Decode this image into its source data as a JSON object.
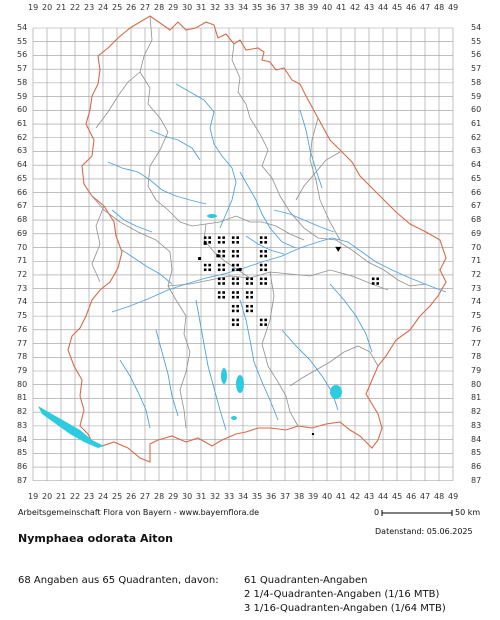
{
  "grid": {
    "columns": [
      19,
      20,
      21,
      22,
      23,
      24,
      25,
      26,
      27,
      28,
      29,
      30,
      31,
      32,
      33,
      34,
      35,
      36,
      37,
      38,
      39,
      40,
      41,
      42,
      43,
      44,
      45,
      46,
      47,
      48,
      49
    ],
    "rows": [
      54,
      55,
      56,
      57,
      58,
      59,
      60,
      61,
      62,
      63,
      64,
      65,
      66,
      67,
      68,
      69,
      70,
      71,
      72,
      73,
      74,
      75,
      76,
      77,
      78,
      79,
      80,
      81,
      82,
      83,
      84,
      85,
      86,
      87
    ]
  },
  "records": {
    "quadrant_cells": [
      [
        31,
        69
      ],
      [
        32,
        69
      ],
      [
        33,
        69
      ],
      [
        35,
        69
      ],
      [
        32,
        70
      ],
      [
        33,
        70
      ],
      [
        35,
        70
      ],
      [
        31,
        71
      ],
      [
        32,
        71
      ],
      [
        33,
        71
      ],
      [
        35,
        71
      ],
      [
        32,
        72
      ],
      [
        33,
        72
      ],
      [
        34,
        72
      ],
      [
        35,
        72
      ],
      [
        43,
        72
      ],
      [
        32,
        73
      ],
      [
        33,
        73
      ],
      [
        34,
        73
      ],
      [
        33,
        74
      ],
      [
        34,
        74
      ],
      [
        33,
        75
      ],
      [
        35,
        75
      ]
    ],
    "partial_points": [
      [
        31.3,
        69.7
      ],
      [
        32.2,
        70.6
      ],
      [
        30.9,
        70.8
      ],
      [
        33.8,
        71.6
      ]
    ],
    "triangle_symbols": [
      [
        40.8,
        70.1
      ]
    ],
    "small_points": [
      [
        39.0,
        83.6
      ]
    ]
  },
  "footer": {
    "credit": "Arbeitsgemeinschaft Flora von Bayern - www.bayernflora.de",
    "scale_zero": "0",
    "scale_end": "50 km",
    "date": "Datenstand: 05.06.2025",
    "species": "Nymphaea odorata Aiton",
    "summary_left": "68 Angaben aus 65 Quadranten, davon:",
    "summary_lines": [
      "61 Quadranten-Angaben",
      "2 1/4-Quadranten-Angaben (1/16 MTB)",
      "3 1/16-Quadranten-Angaben (1/64 MTB)"
    ]
  },
  "colors": {
    "grid": "#9a9a9a",
    "state_border": "#d96a4a",
    "district_border": "#8f8f8f",
    "rivers": "#4fa3d9",
    "lakes": "#2ccbe0",
    "records": "#000000"
  }
}
